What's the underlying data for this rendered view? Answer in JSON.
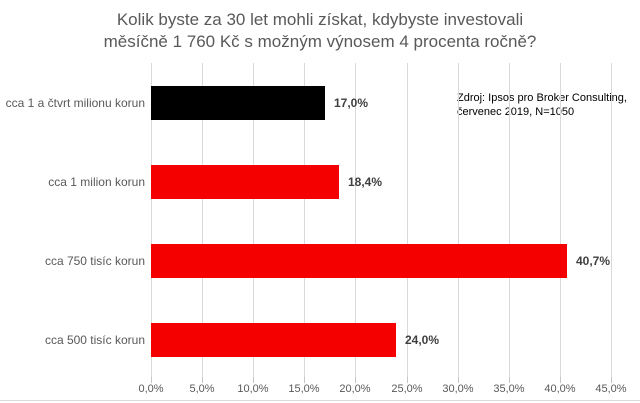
{
  "title": {
    "line1": "Kolik byste za 30 let mohli získat, kdybyste investovali",
    "line2": "měsíčně 1 760 Kč s možným výnosem 4 procenta ročně?"
  },
  "source": {
    "line1": "Zdroj: Ipsos pro Broker Consulting,",
    "line2": "červenec 2019, N=1050"
  },
  "chart_data": {
    "type": "bar",
    "orientation": "horizontal",
    "title": "Kolik byste za 30 let mohli získat, kdybyste investovali měsíčně 1 760 Kč s možným výnosem 4 procenta ročně?",
    "categories": [
      "cca 1 a čtvrt milionu korun",
      "cca 1 milion korun",
      "cca 750 tisíc korun",
      "cca 500 tisíc korun"
    ],
    "values": [
      17.0,
      18.4,
      40.7,
      24.0
    ],
    "value_labels": [
      "17,0%",
      "18,4%",
      "40,7%",
      "24,0%"
    ],
    "bar_colors": [
      "#000000",
      "#f40000",
      "#f40000",
      "#f40000"
    ],
    "xlim": [
      0,
      45
    ],
    "x_tick_values": [
      0,
      5,
      10,
      15,
      20,
      25,
      30,
      35,
      40,
      45
    ],
    "x_tick_labels": [
      "0,0%",
      "5,0%",
      "10,0%",
      "15,0%",
      "20,0%",
      "25,0%",
      "30,0%",
      "35,0%",
      "40,0%",
      "45,0%"
    ],
    "grid": true,
    "legend": false
  },
  "colors": {
    "grid": "#d9d9d9",
    "tick": "#c6c6c6",
    "axis_text": "#595959",
    "value_text": "#3f3f3f",
    "title_text": "#595959",
    "source_text": "#000000",
    "background": "#ffffff"
  }
}
